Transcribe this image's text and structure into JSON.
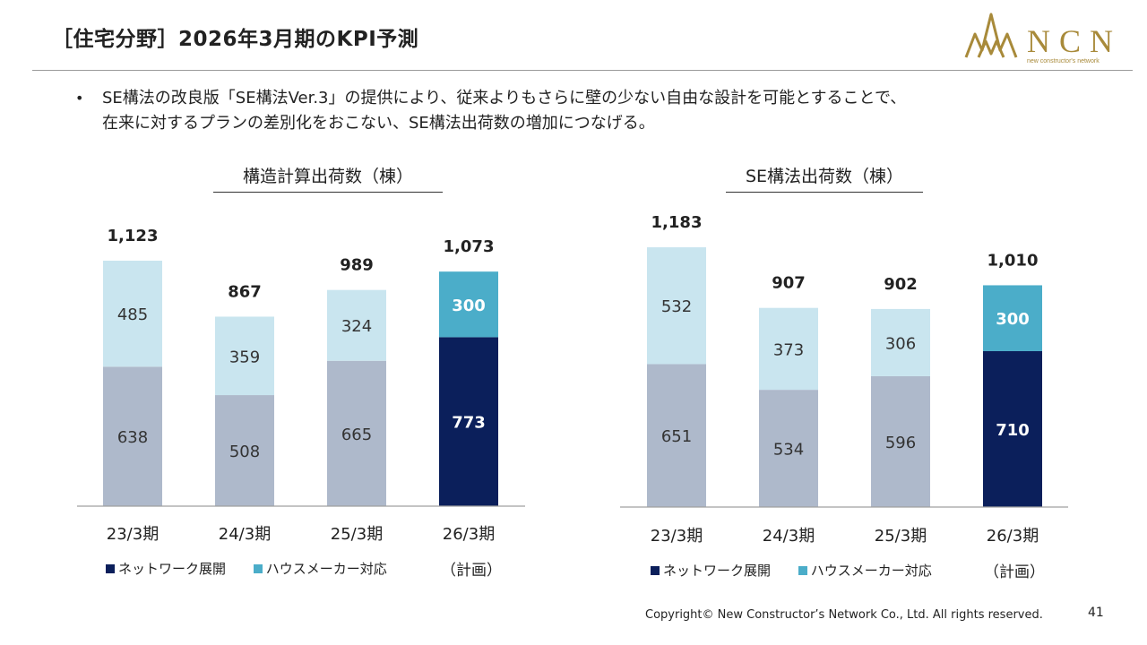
{
  "header": {
    "title": "［住宅分野］2026年3月期のKPI予測",
    "logo_text": "NCN",
    "logo_subtext": "new constructor's network"
  },
  "bullet": {
    "line1": "SE構法の改良版「SE構法Ver.3」の提供により、従来よりもさらに壁の少ない自由な設計を可能とすることで、",
    "line2": "在来に対するプランの差別化をおこない、SE構法出荷数の増加につなげる。"
  },
  "legend": {
    "network": "ネットワーク展開",
    "housemaker": "ハウスメーカー対応"
  },
  "plan_note": "（計画）",
  "footer": {
    "copyright": "Copyright© New Constructor’s Network Co., Ltd. All rights reserved.",
    "page_number": "41"
  },
  "colors": {
    "lower_past": "#aeb9cb",
    "upper_past": "#c9e5ef",
    "lower_plan": "#0b1f5b",
    "upper_plan": "#4badc9"
  },
  "chart_data": [
    {
      "type": "bar",
      "stacked": true,
      "title": "構造計算出荷数（棟）",
      "categories": [
        "23/3期",
        "24/3期",
        "25/3期",
        "26/3期"
      ],
      "series": [
        {
          "name": "ネットワーク展開",
          "values": [
            638,
            508,
            665,
            773
          ]
        },
        {
          "name": "ハウスメーカー対応",
          "values": [
            485,
            359,
            324,
            300
          ]
        }
      ],
      "totals": [
        "1,123",
        "867",
        "989",
        "1,073"
      ],
      "highlight_index": 3,
      "ylim": [
        0,
        1123
      ]
    },
    {
      "type": "bar",
      "stacked": true,
      "title": "SE構法出荷数（棟）",
      "categories": [
        "23/3期",
        "24/3期",
        "25/3期",
        "26/3期"
      ],
      "series": [
        {
          "name": "ネットワーク展開",
          "values": [
            651,
            534,
            596,
            710
          ]
        },
        {
          "name": "ハウスメーカー対応",
          "values": [
            532,
            373,
            306,
            300
          ]
        }
      ],
      "totals": [
        "1,183",
        "907",
        "902",
        "1,010"
      ],
      "highlight_index": 3,
      "ylim": [
        0,
        1183
      ]
    }
  ]
}
